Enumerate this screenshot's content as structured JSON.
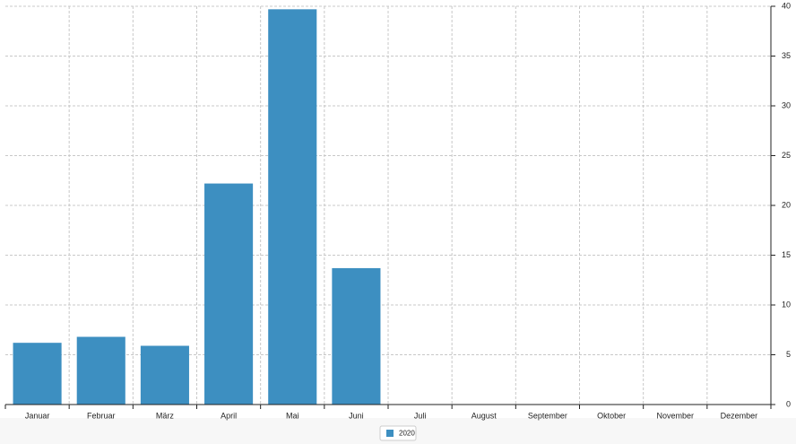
{
  "chart_data": {
    "type": "bar",
    "categories": [
      "Januar",
      "Februar",
      "März",
      "April",
      "Mai",
      "Juni",
      "Juli",
      "August",
      "September",
      "Oktober",
      "November",
      "Dezember"
    ],
    "series": [
      {
        "name": "2020",
        "color": "#3d8fc1",
        "values": [
          6.2,
          6.8,
          5.9,
          22.2,
          39.7,
          13.7,
          null,
          null,
          null,
          null,
          null,
          null
        ]
      }
    ],
    "ylim": [
      0,
      40
    ],
    "yticks": [
      0,
      5,
      10,
      15,
      20,
      25,
      30,
      35,
      40
    ],
    "grid": true,
    "legend": "bottom"
  }
}
